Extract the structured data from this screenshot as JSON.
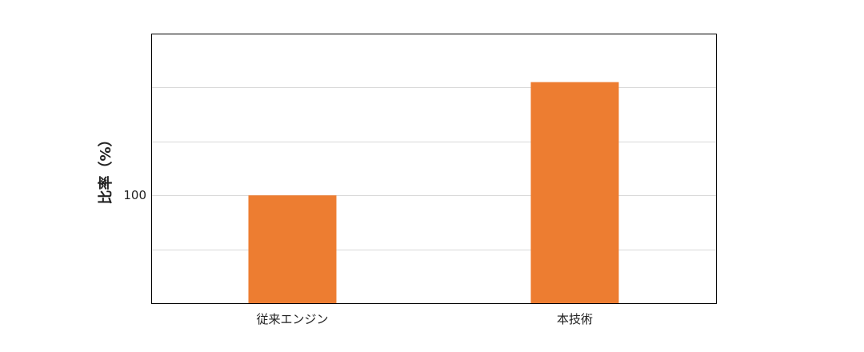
{
  "chart_data": {
    "type": "bar",
    "title": "",
    "xlabel": "",
    "ylabel": "比率（%）",
    "categories": [
      "従来エンジン",
      "本技術"
    ],
    "values": [
      100,
      163
    ],
    "ylim": [
      40,
      190
    ],
    "gridlines": [
      70,
      100,
      130,
      160
    ],
    "yticks_labeled": [
      100
    ],
    "grid": true,
    "colors": {
      "bar": "#ED7D31",
      "grid": "#D9D9D9",
      "frame": "#000000"
    }
  }
}
